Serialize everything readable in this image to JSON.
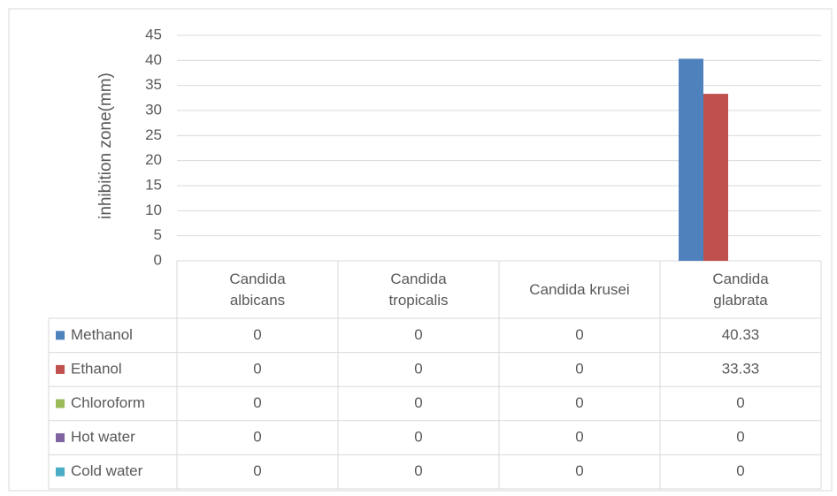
{
  "chart_data": {
    "type": "bar",
    "y_label": "inhibition zone(mm)",
    "categories": [
      "Candida albicans",
      "Candida tropicalis",
      "Candida krusei",
      "Candida glabrata"
    ],
    "series": [
      {
        "name": "Methanol",
        "color": "#4f81bd",
        "values": [
          0,
          0,
          0,
          40.33
        ]
      },
      {
        "name": "Ethanol",
        "color": "#c0504d",
        "values": [
          0,
          0,
          0,
          33.33
        ]
      },
      {
        "name": "Chloroform",
        "color": "#9bbb59",
        "values": [
          0,
          0,
          0,
          0
        ]
      },
      {
        "name": "Hot water",
        "color": "#8064a2",
        "values": [
          0,
          0,
          0,
          0
        ]
      },
      {
        "name": "Cold water",
        "color": "#4bacc6",
        "values": [
          0,
          0,
          0,
          0
        ]
      }
    ],
    "ylim": [
      0,
      45
    ],
    "yticks": [
      0,
      5,
      10,
      15,
      20,
      25,
      30,
      35,
      40,
      45
    ],
    "grid": true
  }
}
